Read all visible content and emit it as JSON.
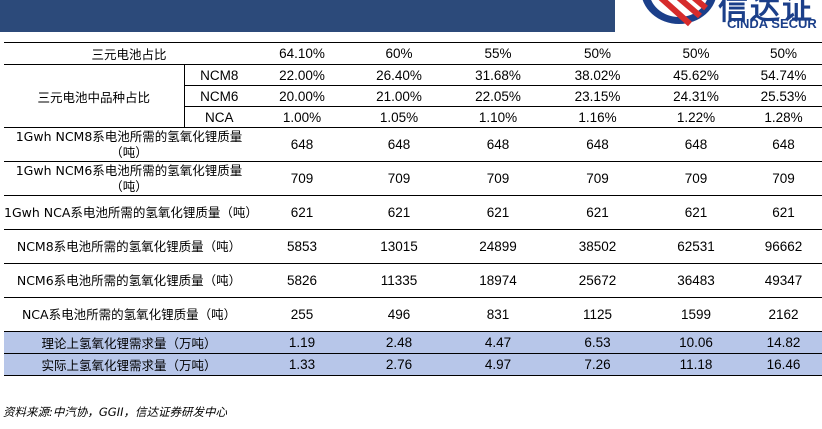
{
  "header": {
    "logo_text": "信达证",
    "logo_sub": "CINDA SECUR",
    "colors": {
      "bar": "#2c4a7a",
      "brand": "#1b3f8a",
      "highlight_row": "#b7c6e9"
    }
  },
  "table": {
    "share_row": {
      "label": "三元电池占比",
      "values": [
        "64.10%",
        "60%",
        "55%",
        "50%",
        "50%",
        "50%"
      ]
    },
    "variety_group_label": "三元电池中品种占比",
    "variety_rows": [
      {
        "label": "NCM8",
        "values": [
          "22.00%",
          "26.40%",
          "31.68%",
          "38.02%",
          "45.62%",
          "54.74%"
        ]
      },
      {
        "label": "NCM6",
        "values": [
          "20.00%",
          "21.00%",
          "22.05%",
          "23.15%",
          "24.31%",
          "25.53%"
        ]
      },
      {
        "label": "NCA",
        "values": [
          "1.00%",
          "1.05%",
          "1.10%",
          "1.16%",
          "1.22%",
          "1.28%"
        ]
      }
    ],
    "detail_rows": [
      {
        "label": "1Gwh NCM8系电池所需的氢氧化锂质量（吨）",
        "values": [
          "648",
          "648",
          "648",
          "648",
          "648",
          "648"
        ]
      },
      {
        "label": "1Gwh NCM6系电池所需的氢氧化锂质量（吨）",
        "values": [
          "709",
          "709",
          "709",
          "709",
          "709",
          "709"
        ]
      },
      {
        "label": "1Gwh NCA系电池所需的氢氧化锂质量（吨）",
        "values": [
          "621",
          "621",
          "621",
          "621",
          "621",
          "621"
        ]
      },
      {
        "label": "NCM8系电池所需的氢氧化锂质量（吨）",
        "values": [
          "5853",
          "13015",
          "24899",
          "38502",
          "62531",
          "96662"
        ]
      },
      {
        "label": "NCM6系电池所需的氢氧化锂质量（吨）",
        "values": [
          "5826",
          "11335",
          "18974",
          "25672",
          "36483",
          "49347"
        ]
      },
      {
        "label": "NCA系电池所需的氢氧化锂质量（吨）",
        "values": [
          "255",
          "496",
          "831",
          "1125",
          "1599",
          "2162"
        ]
      }
    ],
    "demand_rows": [
      {
        "label": "理论上氢氧化锂需求量（万吨）",
        "values": [
          "1.19",
          "2.48",
          "4.47",
          "6.53",
          "10.06",
          "14.82"
        ]
      },
      {
        "label": "实际上氢氧化锂需求量（万吨）",
        "values": [
          "1.33",
          "2.76",
          "4.97",
          "7.26",
          "11.18",
          "16.46"
        ]
      }
    ]
  },
  "source": "资料来源:中汽协，GGII，信达证券研发中心"
}
